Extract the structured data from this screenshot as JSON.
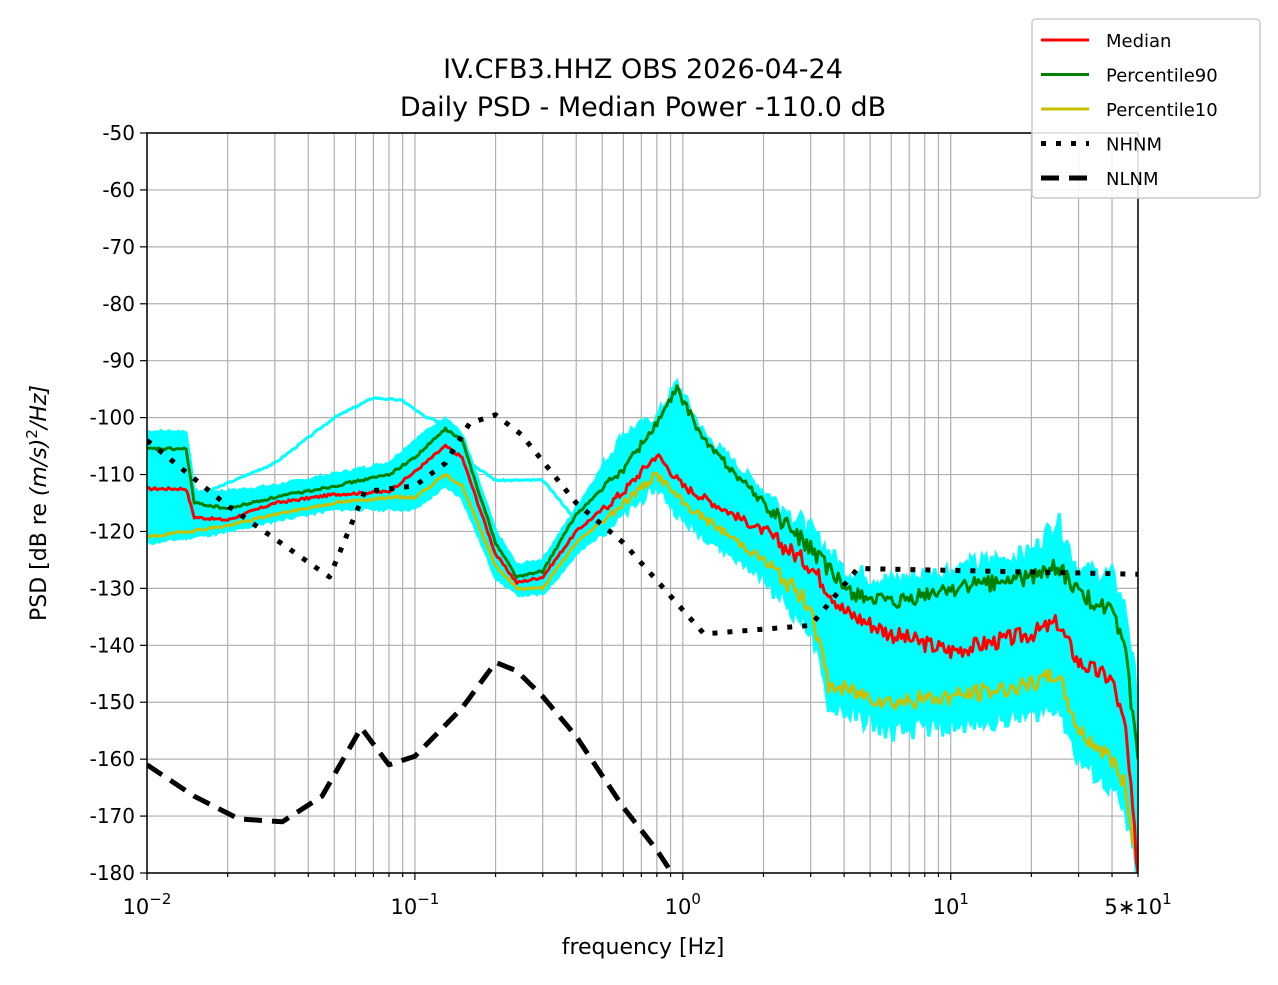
{
  "chart_data": {
    "type": "line",
    "title": "IV.CFB3.HHZ OBS 2026-04-24",
    "subtitle": "Daily PSD - Median Power -110.0 dB",
    "xlabel": "frequency [Hz]",
    "ylabel_parts": {
      "prefix": "PSD [dB re ",
      "unit": "(m/s)",
      "exp": "2",
      "suffix": "/Hz]"
    },
    "xscale": "log",
    "xlim": [
      0.01,
      50
    ],
    "ylim": [
      -180,
      -50
    ],
    "grid": true,
    "legend_placement": "top-right (outside axes)",
    "x_ticks": [
      {
        "value": 0.01,
        "base": "10",
        "exp": "−2"
      },
      {
        "value": 0.1,
        "base": "10",
        "exp": "−1"
      },
      {
        "value": 1,
        "base": "10",
        "exp": "0"
      },
      {
        "value": 10,
        "base": "10",
        "exp": "1"
      },
      {
        "value": 50,
        "base": "5∗10",
        "exp": "1"
      }
    ],
    "y_ticks": [
      "-50",
      "-60",
      "-70",
      "-80",
      "-90",
      "-100",
      "-110",
      "-120",
      "-130",
      "-140",
      "-150",
      "-160",
      "-170",
      "-180"
    ],
    "traces_band": {
      "name": "individual PSDs",
      "color": "#00ffff",
      "upper": [
        [
          0.01,
          -102.5
        ],
        [
          0.014,
          -102.5
        ],
        [
          0.015,
          -113
        ],
        [
          0.02,
          -113
        ],
        [
          0.03,
          -112
        ],
        [
          0.05,
          -110
        ],
        [
          0.08,
          -108
        ],
        [
          0.1,
          -104
        ],
        [
          0.13,
          -100
        ],
        [
          0.15,
          -103
        ],
        [
          0.2,
          -120
        ],
        [
          0.24,
          -126
        ],
        [
          0.3,
          -125
        ],
        [
          0.4,
          -116
        ],
        [
          0.6,
          -103
        ],
        [
          0.8,
          -100
        ],
        [
          0.95,
          -94
        ],
        [
          1.2,
          -103
        ],
        [
          2,
          -113
        ],
        [
          3,
          -120
        ],
        [
          4,
          -127
        ],
        [
          6,
          -129
        ],
        [
          10,
          -127
        ],
        [
          20,
          -124
        ],
        [
          25,
          -118
        ],
        [
          30,
          -127
        ],
        [
          40,
          -128
        ],
        [
          45,
          -134
        ],
        [
          50,
          -150
        ]
      ],
      "lower": [
        [
          0.01,
          -122
        ],
        [
          0.02,
          -120
        ],
        [
          0.03,
          -118
        ],
        [
          0.05,
          -116
        ],
        [
          0.08,
          -116
        ],
        [
          0.1,
          -116
        ],
        [
          0.13,
          -112
        ],
        [
          0.15,
          -114
        ],
        [
          0.2,
          -128
        ],
        [
          0.24,
          -131
        ],
        [
          0.3,
          -131
        ],
        [
          0.4,
          -124
        ],
        [
          0.6,
          -117
        ],
        [
          0.8,
          -112
        ],
        [
          1,
          -118
        ],
        [
          2,
          -128
        ],
        [
          3,
          -137
        ],
        [
          3.5,
          -150
        ],
        [
          6,
          -155
        ],
        [
          10,
          -154
        ],
        [
          20,
          -152
        ],
        [
          25,
          -150
        ],
        [
          30,
          -160
        ],
        [
          40,
          -165
        ],
        [
          45,
          -170
        ],
        [
          50,
          -180
        ]
      ],
      "outlier": [
        [
          0.015,
          -114
        ],
        [
          0.03,
          -108
        ],
        [
          0.05,
          -100
        ],
        [
          0.07,
          -96.5
        ],
        [
          0.09,
          -97
        ],
        [
          0.11,
          -100
        ],
        [
          0.13,
          -101
        ],
        [
          0.15,
          -107
        ],
        [
          0.2,
          -111
        ],
        [
          0.3,
          -111
        ],
        [
          0.4,
          -118
        ],
        [
          0.5,
          -117
        ]
      ]
    },
    "series": [
      {
        "name": "Median",
        "color": "#ff0000",
        "style": "solid",
        "points": [
          [
            0.01,
            -112.5
          ],
          [
            0.014,
            -112.5
          ],
          [
            0.015,
            -117.5
          ],
          [
            0.02,
            -118
          ],
          [
            0.03,
            -115
          ],
          [
            0.05,
            -113.5
          ],
          [
            0.08,
            -113
          ],
          [
            0.1,
            -109.5
          ],
          [
            0.13,
            -105
          ],
          [
            0.15,
            -107
          ],
          [
            0.2,
            -124
          ],
          [
            0.24,
            -129
          ],
          [
            0.3,
            -128
          ],
          [
            0.4,
            -120
          ],
          [
            0.6,
            -113
          ],
          [
            0.8,
            -106.5
          ],
          [
            1,
            -112
          ],
          [
            2,
            -120
          ],
          [
            3,
            -126
          ],
          [
            4,
            -134
          ],
          [
            6,
            -138
          ],
          [
            10,
            -141
          ],
          [
            20,
            -138
          ],
          [
            25,
            -136
          ],
          [
            30,
            -143
          ],
          [
            40,
            -146
          ],
          [
            45,
            -155
          ],
          [
            50,
            -180
          ]
        ]
      },
      {
        "name": "Percentile90",
        "color": "#008000",
        "style": "solid",
        "points": [
          [
            0.01,
            -105.5
          ],
          [
            0.014,
            -105.5
          ],
          [
            0.015,
            -115
          ],
          [
            0.02,
            -116
          ],
          [
            0.03,
            -114
          ],
          [
            0.05,
            -112
          ],
          [
            0.08,
            -110
          ],
          [
            0.1,
            -107
          ],
          [
            0.13,
            -102
          ],
          [
            0.15,
            -104
          ],
          [
            0.2,
            -122
          ],
          [
            0.24,
            -128
          ],
          [
            0.3,
            -127
          ],
          [
            0.4,
            -117
          ],
          [
            0.6,
            -109
          ],
          [
            0.8,
            -101
          ],
          [
            0.95,
            -95
          ],
          [
            1.2,
            -104
          ],
          [
            2,
            -115
          ],
          [
            3,
            -123
          ],
          [
            4,
            -130
          ],
          [
            6,
            -133
          ],
          [
            10,
            -130
          ],
          [
            20,
            -128
          ],
          [
            25,
            -126
          ],
          [
            30,
            -131
          ],
          [
            40,
            -134
          ],
          [
            45,
            -142
          ],
          [
            50,
            -160
          ]
        ]
      },
      {
        "name": "Percentile10",
        "color": "#c8c000",
        "style": "solid",
        "points": [
          [
            0.01,
            -121
          ],
          [
            0.02,
            -119
          ],
          [
            0.03,
            -117
          ],
          [
            0.05,
            -115
          ],
          [
            0.08,
            -114
          ],
          [
            0.1,
            -114
          ],
          [
            0.13,
            -110
          ],
          [
            0.15,
            -112
          ],
          [
            0.2,
            -126
          ],
          [
            0.24,
            -130
          ],
          [
            0.3,
            -130
          ],
          [
            0.4,
            -122
          ],
          [
            0.6,
            -115
          ],
          [
            0.8,
            -110
          ],
          [
            1,
            -115
          ],
          [
            2,
            -125
          ],
          [
            3,
            -133
          ],
          [
            3.5,
            -147
          ],
          [
            6,
            -150
          ],
          [
            10,
            -149
          ],
          [
            20,
            -147
          ],
          [
            25,
            -145
          ],
          [
            30,
            -155
          ],
          [
            40,
            -160
          ],
          [
            45,
            -165
          ],
          [
            50,
            -180
          ]
        ]
      },
      {
        "name": "NHNM",
        "color": "#000000",
        "style": "dotted",
        "points": [
          [
            0.01,
            -104
          ],
          [
            0.02,
            -115.5
          ],
          [
            0.048,
            -128
          ],
          [
            0.065,
            -113
          ],
          [
            0.1,
            -112
          ],
          [
            0.13,
            -108
          ],
          [
            0.16,
            -101
          ],
          [
            0.2,
            -99.5
          ],
          [
            0.25,
            -103
          ],
          [
            0.4,
            -115
          ],
          [
            0.6,
            -122
          ],
          [
            1.2,
            -138
          ],
          [
            3,
            -136.5
          ],
          [
            4.5,
            -126.5
          ],
          [
            50,
            -127.5
          ]
        ]
      },
      {
        "name": "NLNM",
        "color": "#000000",
        "style": "dashed",
        "points": [
          [
            0.01,
            -161
          ],
          [
            0.015,
            -166.5
          ],
          [
            0.022,
            -170.5
          ],
          [
            0.032,
            -171
          ],
          [
            0.045,
            -166.5
          ],
          [
            0.063,
            -154.5
          ],
          [
            0.08,
            -161
          ],
          [
            0.1,
            -159.5
          ],
          [
            0.15,
            -151
          ],
          [
            0.2,
            -143
          ],
          [
            0.24,
            -144.5
          ],
          [
            0.3,
            -149
          ],
          [
            0.4,
            -156
          ],
          [
            0.6,
            -168.5
          ],
          [
            0.8,
            -176
          ],
          [
            0.91,
            -180
          ]
        ]
      }
    ]
  }
}
